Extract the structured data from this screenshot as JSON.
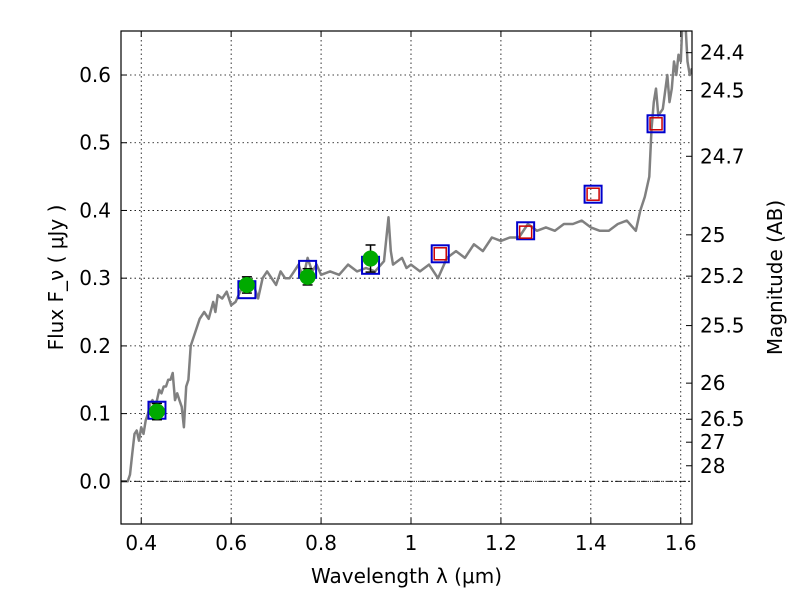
{
  "chart_data": {
    "type": "line",
    "xlabel": "Wavelength  λ (μm)",
    "ylabel": "Flux  F_ν  ( μJy )",
    "y2label": "Magnitude (AB)",
    "xlim": [
      0.355,
      1.625
    ],
    "ylim": [
      -0.063,
      0.665
    ],
    "grid": true,
    "x_ticks": [
      0.4,
      0.6,
      0.8,
      1.0,
      1.2,
      1.4,
      1.6
    ],
    "x_tick_labels": [
      "0.4",
      "0.6",
      "0.8",
      "1",
      "1.2",
      "1.4",
      "1.6"
    ],
    "y_ticks": [
      0.0,
      0.1,
      0.2,
      0.3,
      0.4,
      0.5,
      0.6
    ],
    "y_tick_labels": [
      "0.0",
      "0.1",
      "0.2",
      "0.3",
      "0.4",
      "0.5",
      "0.6"
    ],
    "y2_tick_labels": [
      {
        "label": "24.4",
        "flux": 0.633
      },
      {
        "label": "24.5",
        "flux": 0.577
      },
      {
        "label": "24.7",
        "flux": 0.48
      },
      {
        "label": "25",
        "flux": 0.364
      },
      {
        "label": "25.2",
        "flux": 0.303
      },
      {
        "label": "25.5",
        "flux": 0.23
      },
      {
        "label": "26",
        "flux": 0.145
      },
      {
        "label": "26.5",
        "flux": 0.0917
      },
      {
        "label": "27",
        "flux": 0.0578
      },
      {
        "label": "28",
        "flux": 0.023
      }
    ],
    "zero_line": 0.0,
    "series": [
      {
        "style": "spectrum",
        "color": "#808080",
        "x": [
          0.355,
          0.37,
          0.375,
          0.38,
          0.385,
          0.39,
          0.395,
          0.4,
          0.405,
          0.41,
          0.415,
          0.42,
          0.425,
          0.43,
          0.435,
          0.44,
          0.445,
          0.45,
          0.455,
          0.46,
          0.465,
          0.47,
          0.475,
          0.48,
          0.485,
          0.49,
          0.495,
          0.5,
          0.505,
          0.51,
          0.52,
          0.53,
          0.54,
          0.55,
          0.56,
          0.565,
          0.57,
          0.58,
          0.59,
          0.6,
          0.61,
          0.62,
          0.63,
          0.64,
          0.65,
          0.66,
          0.67,
          0.68,
          0.69,
          0.7,
          0.71,
          0.72,
          0.73,
          0.74,
          0.75,
          0.76,
          0.77,
          0.78,
          0.79,
          0.8,
          0.82,
          0.84,
          0.86,
          0.88,
          0.9,
          0.92,
          0.94,
          0.95,
          0.955,
          0.96,
          0.97,
          0.98,
          0.99,
          1.0,
          1.02,
          1.04,
          1.06,
          1.08,
          1.1,
          1.12,
          1.14,
          1.16,
          1.18,
          1.2,
          1.22,
          1.24,
          1.26,
          1.28,
          1.3,
          1.32,
          1.34,
          1.36,
          1.38,
          1.4,
          1.42,
          1.44,
          1.46,
          1.48,
          1.5,
          1.51,
          1.52,
          1.53,
          1.535,
          1.54,
          1.545,
          1.55,
          1.56,
          1.57,
          1.575,
          1.58,
          1.585,
          1.59,
          1.595,
          1.6,
          1.605,
          1.61,
          1.615,
          1.62,
          1.625
        ],
        "y": [
          0.0,
          0.0,
          0.01,
          0.04,
          0.07,
          0.075,
          0.06,
          0.08,
          0.07,
          0.09,
          0.1,
          0.115,
          0.12,
          0.11,
          0.12,
          0.135,
          0.13,
          0.14,
          0.14,
          0.15,
          0.15,
          0.16,
          0.12,
          0.13,
          0.12,
          0.11,
          0.08,
          0.14,
          0.15,
          0.2,
          0.22,
          0.24,
          0.25,
          0.24,
          0.265,
          0.25,
          0.275,
          0.27,
          0.28,
          0.26,
          0.265,
          0.28,
          0.29,
          0.28,
          0.29,
          0.27,
          0.3,
          0.31,
          0.3,
          0.29,
          0.31,
          0.3,
          0.3,
          0.31,
          0.32,
          0.3,
          0.33,
          0.31,
          0.32,
          0.305,
          0.31,
          0.305,
          0.32,
          0.31,
          0.315,
          0.31,
          0.325,
          0.39,
          0.34,
          0.32,
          0.325,
          0.33,
          0.315,
          0.32,
          0.31,
          0.32,
          0.3,
          0.33,
          0.34,
          0.33,
          0.35,
          0.34,
          0.36,
          0.355,
          0.36,
          0.36,
          0.38,
          0.37,
          0.375,
          0.37,
          0.38,
          0.38,
          0.385,
          0.375,
          0.37,
          0.37,
          0.38,
          0.385,
          0.37,
          0.4,
          0.42,
          0.45,
          0.52,
          0.56,
          0.58,
          0.54,
          0.55,
          0.6,
          0.56,
          0.58,
          0.62,
          0.6,
          0.63,
          0.62,
          0.7,
          0.68,
          0.62,
          0.6,
          0.61
        ]
      },
      {
        "style": "blue-square",
        "color": "#0000cc",
        "x": [
          0.435,
          0.635,
          0.77,
          0.91,
          1.065,
          1.255,
          1.405,
          1.545
        ],
        "y": [
          0.105,
          0.283,
          0.313,
          0.319,
          0.336,
          0.37,
          0.424,
          0.528
        ]
      },
      {
        "style": "red-square",
        "color": "#cc0000",
        "x": [
          1.065,
          1.255,
          1.405,
          1.545
        ],
        "y": [
          0.336,
          0.368,
          0.424,
          0.528
        ]
      },
      {
        "style": "green-circle",
        "color": "#00aa00",
        "x": [
          0.435,
          0.635,
          0.77,
          0.91
        ],
        "y": [
          0.103,
          0.29,
          0.302,
          0.329
        ],
        "err": [
          0.012,
          0.012,
          0.012,
          0.02
        ]
      }
    ]
  }
}
